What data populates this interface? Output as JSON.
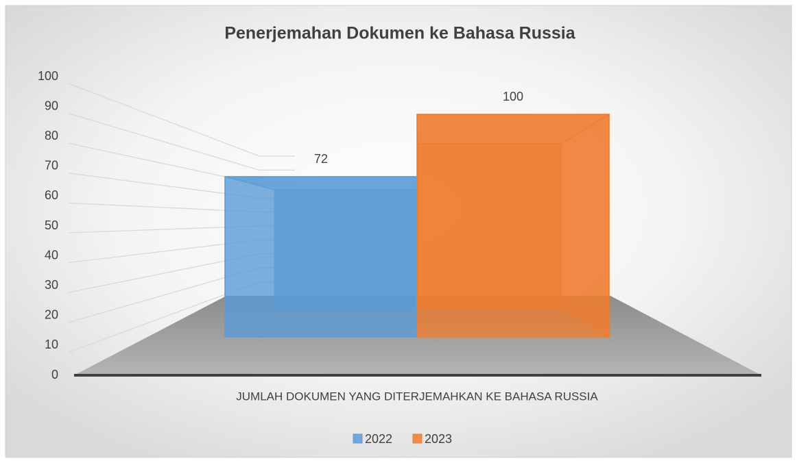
{
  "chart_data": {
    "type": "bar",
    "title": "Penerjemahan Dokumen ke Bahasa Russia",
    "categories": [
      "JUMLAH DOKUMEN YANG DITERJEMAHKAN KE BAHASA RUSSIA"
    ],
    "series": [
      {
        "name": "2022",
        "color": "#5b9bd5",
        "values": [
          72
        ]
      },
      {
        "name": "2023",
        "color": "#ed7d31",
        "values": [
          100
        ]
      }
    ],
    "ylim": [
      0,
      100
    ],
    "yticks": [
      0,
      10,
      20,
      30,
      40,
      50,
      60,
      70,
      80,
      90,
      100
    ],
    "grid": true,
    "legend": "bottom"
  }
}
